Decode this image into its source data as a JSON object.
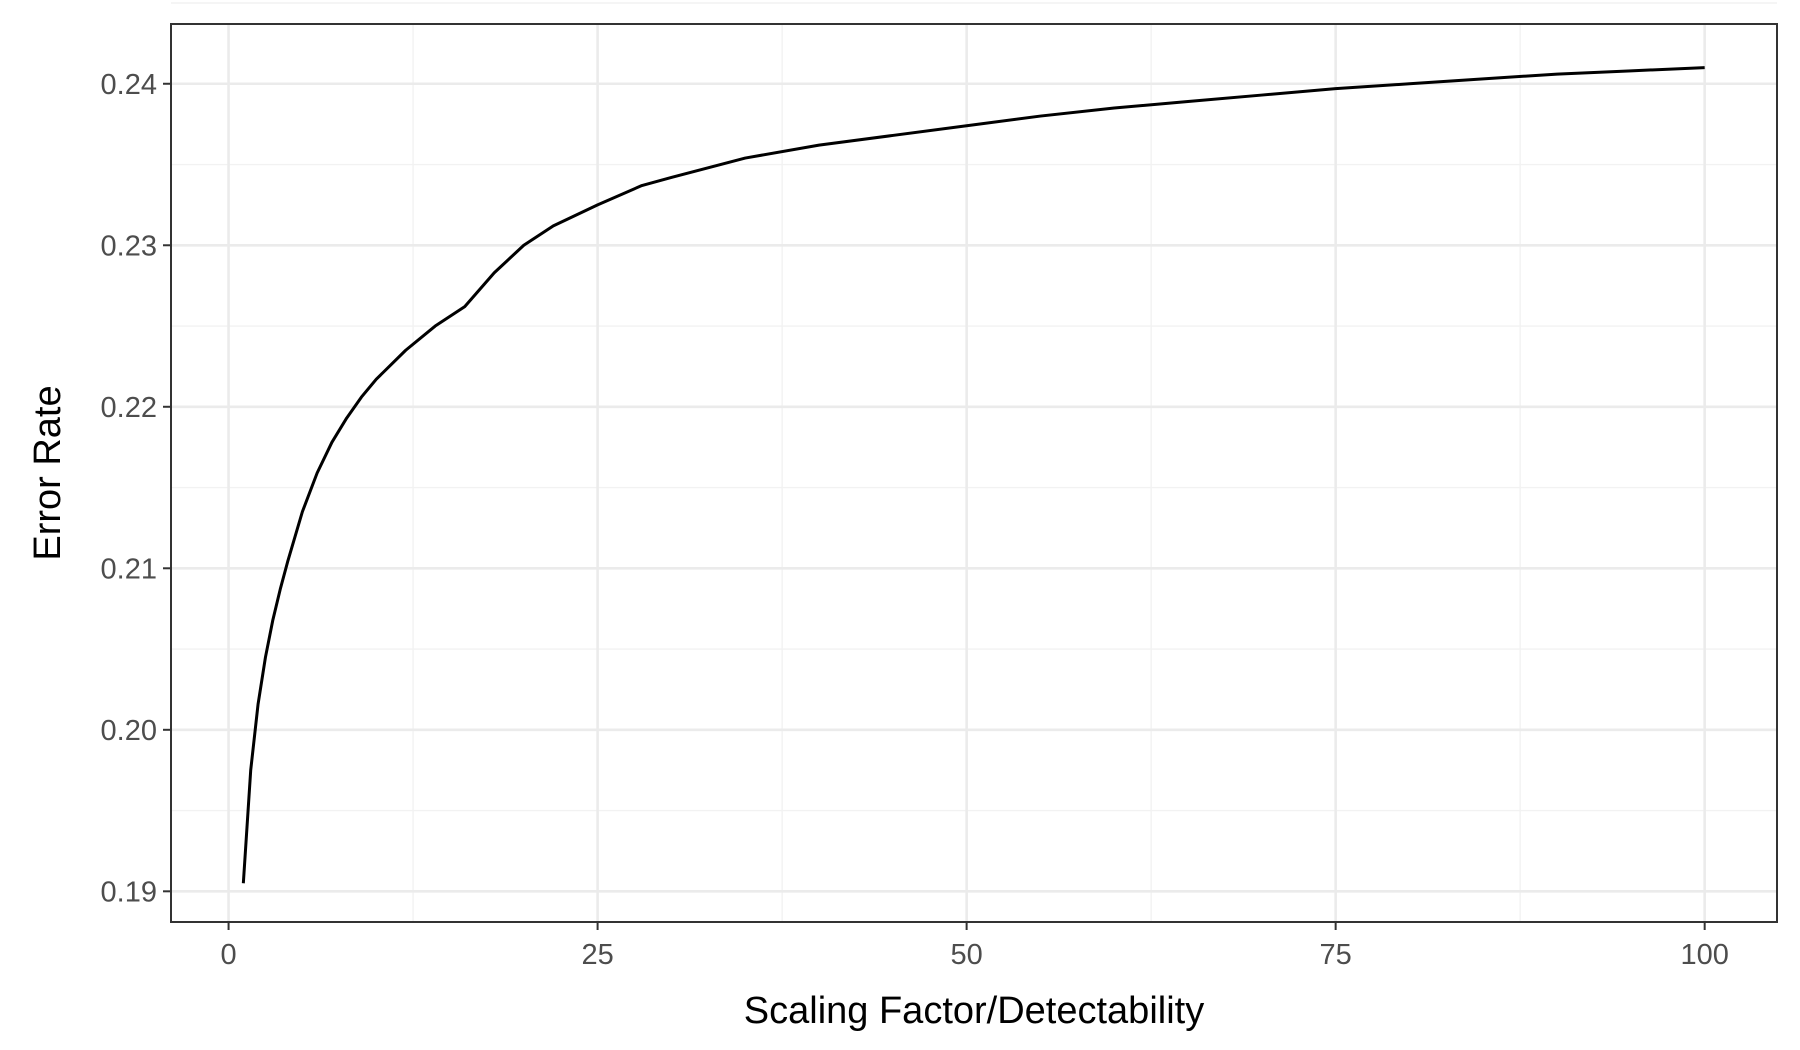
{
  "chart_data": {
    "type": "line",
    "title": "",
    "xlabel": "Scaling Factor/Detectability",
    "ylabel": "Error Rate",
    "xlim": [
      -3.9,
      104.9
    ],
    "ylim": [
      0.1881,
      0.2437
    ],
    "x_ticks": [
      0,
      25,
      50,
      75,
      100
    ],
    "x_tick_labels": [
      "0",
      "25",
      "50",
      "75",
      "100"
    ],
    "y_ticks": [
      0.19,
      0.2,
      0.21,
      0.22,
      0.23,
      0.24
    ],
    "y_tick_labels": [
      "0.19",
      "0.20",
      "0.21",
      "0.22",
      "0.23",
      "0.24"
    ],
    "grid": true,
    "series": [
      {
        "x": [
          1,
          1.5,
          2,
          2.5,
          3,
          3.5,
          4,
          5,
          6,
          7,
          8,
          9,
          10,
          12,
          14,
          16,
          18,
          20,
          22,
          25,
          28,
          30,
          35,
          40,
          45,
          50,
          55,
          60,
          65,
          70,
          75,
          80,
          85,
          90,
          95,
          100
        ],
        "y": [
          0.1905,
          0.1975,
          0.2016,
          0.2045,
          0.2068,
          0.2087,
          0.2104,
          0.2135,
          0.2159,
          0.2178,
          0.2193,
          0.2206,
          0.2217,
          0.2235,
          0.225,
          0.2262,
          0.2283,
          0.23,
          0.2312,
          0.2325,
          0.2337,
          0.2342,
          0.2354,
          0.2362,
          0.2368,
          0.2374,
          0.238,
          0.2385,
          0.2389,
          0.2393,
          0.2397,
          0.24,
          0.2403,
          0.2406,
          0.2408,
          0.241
        ]
      }
    ]
  }
}
